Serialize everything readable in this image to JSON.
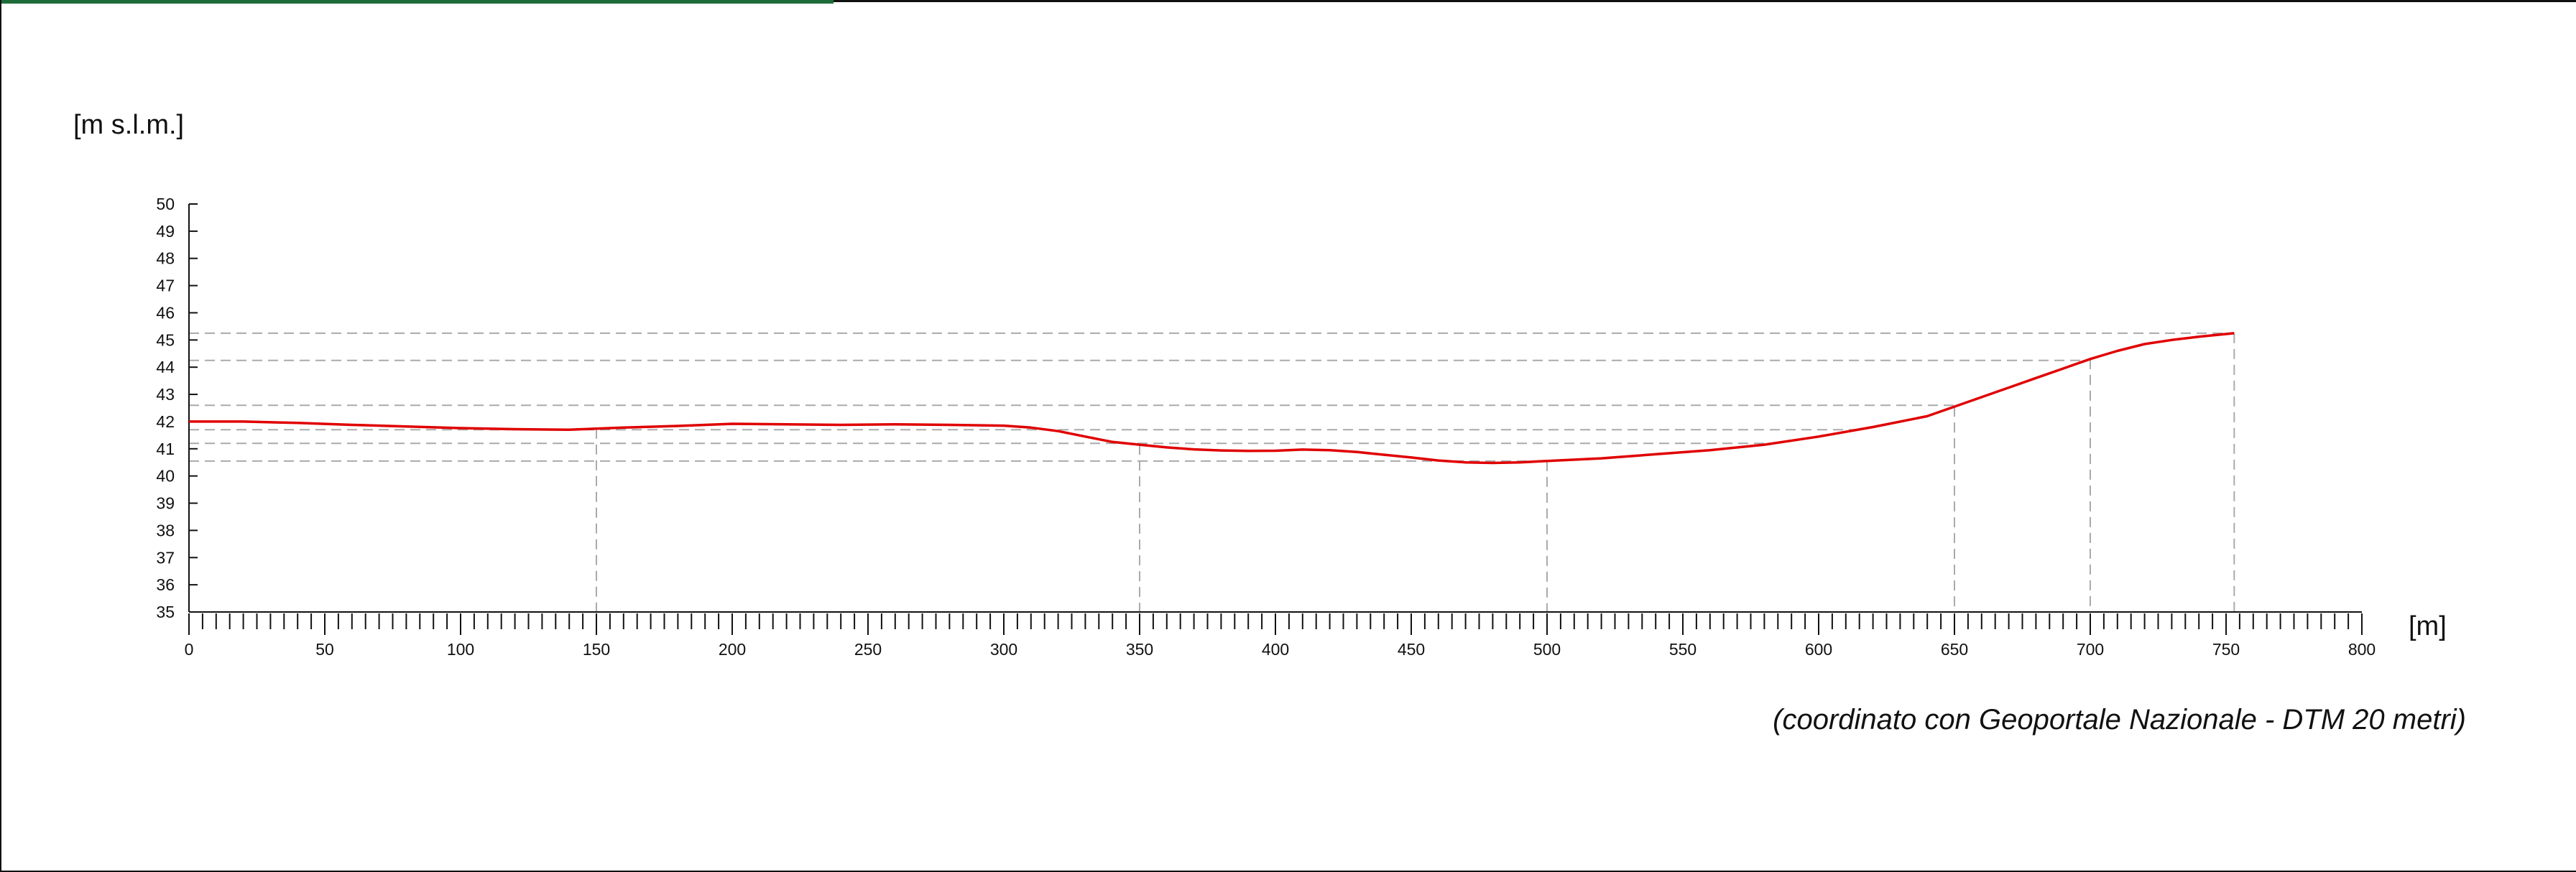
{
  "frame": {
    "accent_color": "#1e6b3a"
  },
  "chart_data": {
    "type": "line",
    "title": "",
    "ylabel": "[m s.l.m.]",
    "xlabel": "[m]",
    "note": "(coordinato con Geoportale Nazionale - DTM 20 metri)",
    "xlim": [
      0,
      800
    ],
    "ylim": [
      35,
      50
    ],
    "x_ticks": [
      0,
      50,
      100,
      150,
      200,
      250,
      300,
      350,
      400,
      450,
      500,
      550,
      600,
      650,
      700,
      750,
      800
    ],
    "x_tick_labels": [
      "0",
      "50",
      "100",
      "150",
      "200",
      "250",
      "300",
      "350",
      "400",
      "450",
      "500",
      "550",
      "600",
      "650",
      "700",
      "750",
      "800"
    ],
    "x_minor_step": 5,
    "y_ticks": [
      35,
      36,
      37,
      38,
      39,
      40,
      41,
      42,
      43,
      44,
      45,
      46,
      47,
      48,
      49,
      50
    ],
    "y_tick_labels": [
      "35",
      "36",
      "37",
      "38",
      "39",
      "40",
      "41",
      "42",
      "43",
      "44",
      "45",
      "46",
      "47",
      "48",
      "49",
      "50"
    ],
    "grid": false,
    "line_color": "#e00000",
    "guide_color": "#aaaaaa",
    "series": [
      {
        "x": [
          0,
          20,
          40,
          60,
          80,
          100,
          120,
          140,
          160,
          180,
          200,
          220,
          240,
          260,
          280,
          300,
          310,
          320,
          330,
          340,
          350,
          360,
          370,
          380,
          390,
          400,
          410,
          420,
          430,
          440,
          450,
          460,
          470,
          480,
          490,
          500,
          520,
          540,
          560,
          580,
          600,
          620,
          640,
          650,
          660,
          670,
          680,
          690,
          700,
          710,
          720,
          730,
          740,
          750,
          753
        ],
        "y": [
          42.0,
          42.0,
          41.95,
          41.88,
          41.82,
          41.76,
          41.72,
          41.7,
          41.78,
          41.84,
          41.92,
          41.9,
          41.88,
          41.9,
          41.88,
          41.85,
          41.78,
          41.65,
          41.45,
          41.25,
          41.15,
          41.05,
          40.98,
          40.94,
          40.92,
          40.93,
          40.97,
          40.95,
          40.88,
          40.78,
          40.68,
          40.57,
          40.5,
          40.48,
          40.5,
          40.55,
          40.65,
          40.8,
          40.95,
          41.15,
          41.45,
          41.8,
          42.2,
          42.55,
          42.9,
          43.25,
          43.6,
          43.95,
          44.3,
          44.6,
          44.85,
          45.0,
          45.12,
          45.22,
          45.25
        ]
      }
    ],
    "reference_elevations": [
      45.25,
      44.25,
      42.6,
      41.7,
      41.2,
      40.55
    ],
    "reference_stations": [
      150,
      350,
      500,
      650,
      700,
      753
    ]
  }
}
